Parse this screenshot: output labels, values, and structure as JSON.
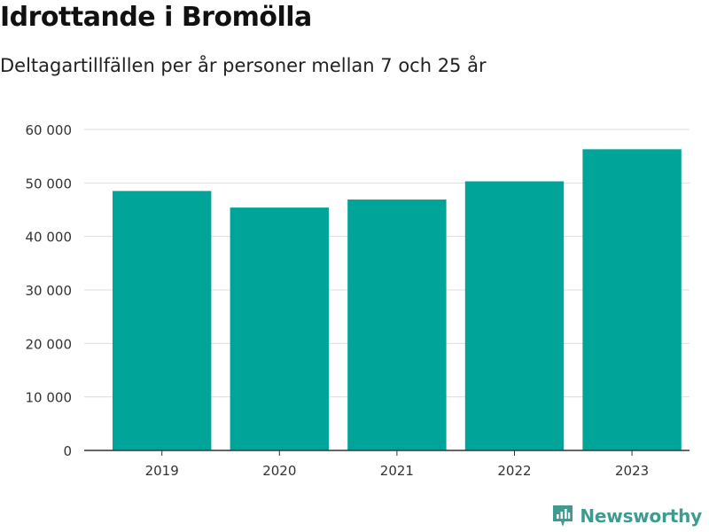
{
  "title": "Idrottande i Bromölla",
  "subtitle": "Deltagartillfällen per år personer mellan 7 och 25 år",
  "brand": {
    "name": "Newsworthy",
    "icon": "newsworthy-logo-icon",
    "color": "#3f9a90"
  },
  "chart_data": {
    "type": "bar",
    "title": "Idrottande i Bromölla",
    "subtitle": "Deltagartillfällen per år personer mellan 7 och 25 år",
    "categories": [
      "2019",
      "2020",
      "2021",
      "2022",
      "2023"
    ],
    "values": [
      48500,
      45400,
      46900,
      50300,
      56300
    ],
    "xlabel": "",
    "ylabel": "",
    "ylim": [
      0,
      60000
    ],
    "yticks": [
      0,
      10000,
      20000,
      30000,
      40000,
      50000,
      60000
    ],
    "ytick_labels": [
      "0",
      "10 000",
      "20 000",
      "30 000",
      "40 000",
      "50 000",
      "60 000"
    ],
    "grid": true,
    "bar_color": "#00a499"
  }
}
